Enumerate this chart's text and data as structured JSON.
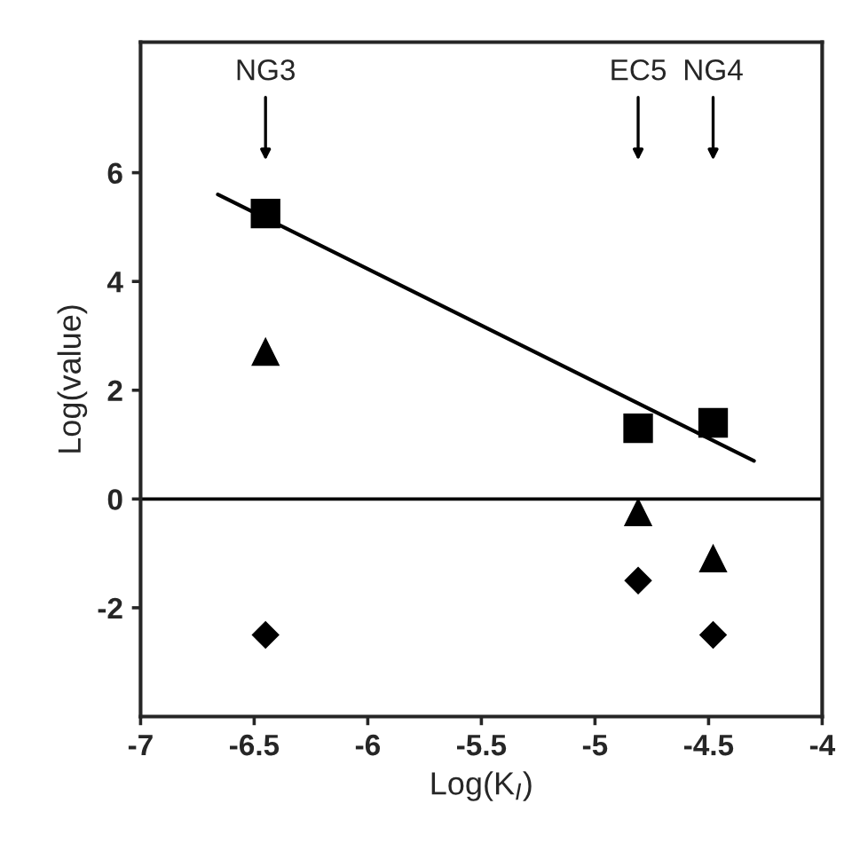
{
  "chart_data": {
    "type": "scatter",
    "xlabel": "Log(K$_{I}$)",
    "ylabel": "Log(value)",
    "series": [
      {
        "marker": "square",
        "color": "#000000",
        "x": [
          -6.45,
          -4.81,
          -4.48
        ],
        "values": [
          5.25,
          1.3,
          1.4
        ]
      },
      {
        "marker": "triangle",
        "color": "#000000",
        "x": [
          -6.45,
          -4.81,
          -4.48
        ],
        "values": [
          2.7,
          -0.25,
          -1.1
        ]
      },
      {
        "marker": "diamond",
        "color": "#000000",
        "x": [
          -6.45,
          -4.81,
          -4.48
        ],
        "values": [
          -2.5,
          -1.5,
          -2.5
        ]
      },
      {
        "type": "line",
        "marker": "none",
        "line_style": "solid",
        "color": "#000000",
        "x": [
          -6.66,
          -4.3
        ],
        "values": [
          5.6,
          0.7
        ]
      }
    ],
    "ref_lines": [
      {
        "axis": "y",
        "value": 0,
        "color": "#000000"
      }
    ],
    "annotations": [
      "NG3",
      "EC5",
      "NG4"
    ],
    "xlim": [
      -7,
      -4
    ],
    "xticks": [
      -7,
      -6.5,
      -6,
      -5.5,
      -5,
      -4.5,
      -4
    ],
    "ylim": [
      -4,
      8.4
    ],
    "yticks": [
      -2,
      0,
      2,
      4,
      6
    ],
    "grid": false,
    "legend": false
  }
}
